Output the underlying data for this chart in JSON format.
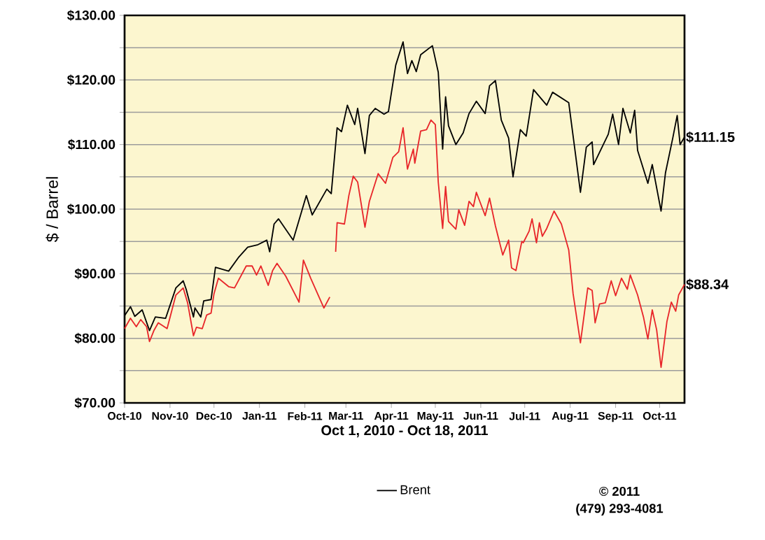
{
  "chart_data": {
    "type": "line",
    "xlabel": "Oct 1, 2010 - Oct 18, 2011",
    "ylabel": "$ / Barrel",
    "xlim": [
      "2010-10-01",
      "2011-10-18"
    ],
    "ylim": [
      70,
      130
    ],
    "xticks": [
      {
        "value": "2010-10-01",
        "label": "Oct-10"
      },
      {
        "value": "2010-11-01",
        "label": "Nov-10"
      },
      {
        "value": "2010-12-01",
        "label": "Dec-10"
      },
      {
        "value": "2011-01-01",
        "label": "Jan-11"
      },
      {
        "value": "2011-02-01",
        "label": "Feb-11"
      },
      {
        "value": "2011-03-01",
        "label": "Mar-11"
      },
      {
        "value": "2011-04-01",
        "label": "Apr-11"
      },
      {
        "value": "2011-05-01",
        "label": "May-11"
      },
      {
        "value": "2011-06-01",
        "label": "Jun-11"
      },
      {
        "value": "2011-07-01",
        "label": "Jul-11"
      },
      {
        "value": "2011-08-01",
        "label": "Aug-11"
      },
      {
        "value": "2011-09-01",
        "label": "Sep-11"
      },
      {
        "value": "2011-10-01",
        "label": "Oct-11"
      }
    ],
    "yticks": [
      {
        "value": 70,
        "label": "$70.00"
      },
      {
        "value": 75,
        "label": null
      },
      {
        "value": 80,
        "label": "$80.00"
      },
      {
        "value": 85,
        "label": null
      },
      {
        "value": 90,
        "label": "$90.00"
      },
      {
        "value": 95,
        "label": null
      },
      {
        "value": 100,
        "label": "$100.00"
      },
      {
        "value": 105,
        "label": null
      },
      {
        "value": 110,
        "label": "$110.00"
      },
      {
        "value": 115,
        "label": null
      },
      {
        "value": 120,
        "label": "$120.00"
      },
      {
        "value": 125,
        "label": null
      },
      {
        "value": 130,
        "label": "$130.00"
      }
    ],
    "grid": "y",
    "legend": "bottom",
    "marker": "none",
    "line_style": "solid",
    "series": [
      {
        "color": "#e8262a",
        "x": [
          "2010-10-01",
          "2010-10-05",
          "2010-10-09",
          "2010-10-12",
          "2010-10-16",
          "2010-10-18",
          "2010-10-21",
          "2010-10-24",
          "2010-10-30",
          "2010-11-05",
          "2010-11-10",
          "2010-11-13",
          "2010-11-17",
          "2010-11-19",
          "2010-11-23",
          "2010-11-26",
          "2010-11-29",
          "2010-12-01",
          "2010-12-04",
          "2010-12-11",
          "2010-12-15",
          "2010-12-23",
          "2010-12-27",
          "2010-12-30",
          "2011-01-02",
          "2011-01-07",
          "2011-01-10",
          "2011-01-13",
          "2011-01-19",
          "2011-01-28",
          "2011-01-31",
          "2011-02-05",
          "2011-02-14",
          "2011-02-18",
          "2011-02-20",
          "2011-02-22",
          "2011-02-23",
          "2011-02-28",
          "2011-03-03",
          "2011-03-06",
          "2011-03-09",
          "2011-03-14",
          "2011-03-17",
          "2011-03-23",
          "2011-03-28",
          "2011-04-02",
          "2011-04-06",
          "2011-04-09",
          "2011-04-12",
          "2011-04-16",
          "2011-04-17",
          "2011-04-21",
          "2011-04-25",
          "2011-04-28",
          "2011-05-01",
          "2011-05-03",
          "2011-05-06",
          "2011-05-08",
          "2011-05-10",
          "2011-05-15",
          "2011-05-17",
          "2011-05-21",
          "2011-05-24",
          "2011-05-27",
          "2011-05-29",
          "2011-06-04",
          "2011-06-07",
          "2011-06-11",
          "2011-06-14",
          "2011-06-16",
          "2011-06-20",
          "2011-06-22",
          "2011-06-25",
          "2011-06-29",
          "2011-06-30",
          "2011-07-04",
          "2011-07-06",
          "2011-07-09",
          "2011-07-11",
          "2011-07-13",
          "2011-07-16",
          "2011-07-21",
          "2011-07-26",
          "2011-07-31",
          "2011-08-03",
          "2011-08-08",
          "2011-08-13",
          "2011-08-16",
          "2011-08-18",
          "2011-08-21",
          "2011-08-25",
          "2011-08-29",
          "2011-09-01",
          "2011-09-05",
          "2011-09-09",
          "2011-09-11",
          "2011-09-16",
          "2011-09-20",
          "2011-09-23",
          "2011-09-26",
          "2011-09-29",
          "2011-10-02",
          "2011-10-06",
          "2011-10-09",
          "2011-10-12",
          "2011-10-14",
          "2011-10-18"
        ],
        "values": [
          81.5,
          83.1,
          81.8,
          82.9,
          81.8,
          79.5,
          81.2,
          82.4,
          81.5,
          86.7,
          87.8,
          85.5,
          80.4,
          81.7,
          81.5,
          83.6,
          83.9,
          86.9,
          89.3,
          88.0,
          87.8,
          91.2,
          91.2,
          89.8,
          91.2,
          88.2,
          90.5,
          91.6,
          89.6,
          85.6,
          92.1,
          89.3,
          84.7,
          86.4,
          null,
          93.4,
          97.9,
          97.7,
          102.1,
          105.1,
          104.2,
          97.2,
          101.2,
          105.5,
          104.0,
          108.0,
          108.9,
          112.6,
          106.2,
          109.3,
          107.1,
          112.1,
          112.3,
          113.8,
          113.1,
          104.2,
          97.0,
          103.5,
          98.1,
          96.9,
          99.9,
          97.5,
          101.2,
          100.4,
          102.6,
          99.0,
          101.7,
          97.4,
          94.7,
          92.9,
          95.2,
          90.9,
          90.5,
          95.0,
          94.8,
          96.6,
          98.5,
          94.8,
          97.9,
          95.8,
          97.0,
          99.7,
          97.7,
          93.7,
          86.9,
          79.3,
          87.8,
          87.4,
          82.4,
          85.3,
          85.5,
          88.9,
          86.6,
          89.3,
          87.6,
          89.8,
          86.7,
          83.3,
          79.9,
          84.4,
          81.3,
          75.5,
          82.6,
          85.6,
          84.2,
          86.7,
          88.34
        ]
      },
      {
        "name": "Brent",
        "color": "#000000",
        "x": [
          "2010-10-01",
          "2010-10-05",
          "2010-10-08",
          "2010-10-13",
          "2010-10-18",
          "2010-10-22",
          "2010-10-29",
          "2010-11-05",
          "2010-11-10",
          "2010-11-12",
          "2010-11-17",
          "2010-11-18",
          "2010-11-22",
          "2010-11-24",
          "2010-11-29",
          "2010-12-02",
          "2010-12-11",
          "2010-12-18",
          "2010-12-24",
          "2010-12-31",
          "2011-01-06",
          "2011-01-08",
          "2011-01-11",
          "2011-01-14",
          "2011-01-24",
          "2011-02-02",
          "2011-02-06",
          "2011-02-16",
          "2011-02-19",
          "2011-02-23",
          "2011-02-26",
          "2011-03-02",
          "2011-03-07",
          "2011-03-09",
          "2011-03-14",
          "2011-03-17",
          "2011-03-21",
          "2011-03-27",
          "2011-03-30",
          "2011-04-04",
          "2011-04-09",
          "2011-04-12",
          "2011-04-15",
          "2011-04-18",
          "2011-04-21",
          "2011-04-29",
          "2011-05-03",
          "2011-05-06",
          "2011-05-08",
          "2011-05-10",
          "2011-05-15",
          "2011-05-20",
          "2011-05-24",
          "2011-05-29",
          "2011-06-04",
          "2011-06-07",
          "2011-06-11",
          "2011-06-15",
          "2011-06-20",
          "2011-06-23",
          "2011-06-28",
          "2011-07-02",
          "2011-07-07",
          "2011-07-16",
          "2011-07-20",
          "2011-07-31",
          "2011-08-04",
          "2011-08-08",
          "2011-08-12",
          "2011-08-16",
          "2011-08-17",
          "2011-08-27",
          "2011-08-30",
          "2011-09-03",
          "2011-09-06",
          "2011-09-11",
          "2011-09-14",
          "2011-09-16",
          "2011-09-23",
          "2011-09-26",
          "2011-10-02",
          "2011-10-05",
          "2011-10-10",
          "2011-10-13",
          "2011-10-15",
          "2011-10-18"
        ],
        "values": [
          83.5,
          84.9,
          83.4,
          84.4,
          81.2,
          83.3,
          83.1,
          87.8,
          88.9,
          87.6,
          83.3,
          84.7,
          83.3,
          85.8,
          86.0,
          91.0,
          90.4,
          92.6,
          94.1,
          94.5,
          95.2,
          93.4,
          97.7,
          98.5,
          95.2,
          102.1,
          99.1,
          103.1,
          102.4,
          112.6,
          112.0,
          116.1,
          113.1,
          115.6,
          108.6,
          114.5,
          115.6,
          114.7,
          115.1,
          122.3,
          125.9,
          121.0,
          123.0,
          121.3,
          123.9,
          125.3,
          121.2,
          109.3,
          117.4,
          112.9,
          110.0,
          111.8,
          114.8,
          116.7,
          114.8,
          119.1,
          119.9,
          113.8,
          111.0,
          105.0,
          112.3,
          111.3,
          118.5,
          116.1,
          118.1,
          116.5,
          109.6,
          102.6,
          109.6,
          110.4,
          106.9,
          111.6,
          114.7,
          110.0,
          115.6,
          111.8,
          115.3,
          109.1,
          104.0,
          106.9,
          99.7,
          105.6,
          111.0,
          114.5,
          110.0,
          111.15
        ]
      }
    ],
    "annotations": [
      {
        "text": "$111.15",
        "x": "2011-10-18",
        "y": 111.15
      },
      {
        "text": "$88.34",
        "x": "2011-10-18",
        "y": 88.34
      },
      "© 2011",
      "(479) 293-4081"
    ]
  }
}
